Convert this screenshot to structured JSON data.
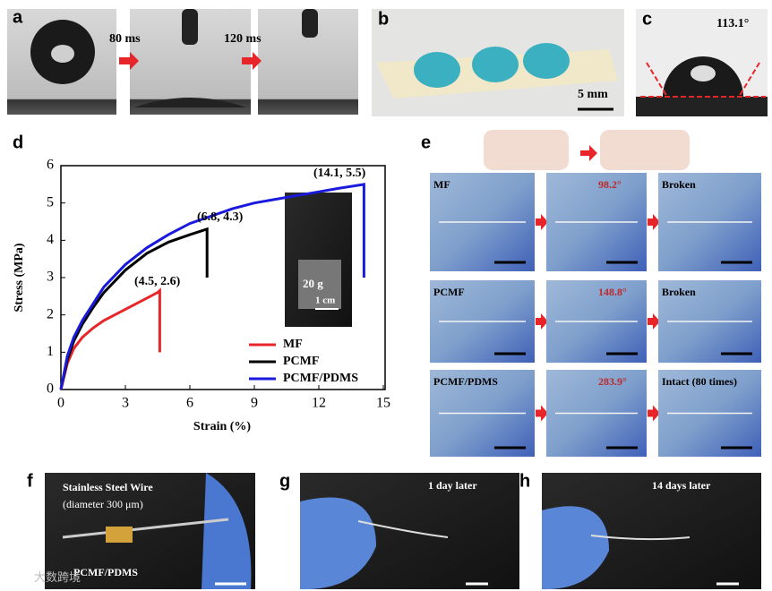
{
  "panels": {
    "a": {
      "label": "a",
      "t1": "80 ms",
      "t2": "120 ms"
    },
    "b": {
      "label": "b",
      "scale": "5 mm"
    },
    "c": {
      "label": "c",
      "angle": "113.1°"
    },
    "e": {
      "label": "e",
      "rows": [
        [
          "MF",
          "98.2°",
          "Broken"
        ],
        [
          "PCMF",
          "148.8°",
          "Broken"
        ],
        [
          "PCMF/PDMS",
          "283.9°",
          "Intact (80 times)"
        ]
      ]
    },
    "f": {
      "label": "f",
      "wire": "Stainless Steel Wire",
      "diameter": "(diameter 300 μm)",
      "coating": "PCMF/PDMS"
    },
    "g": {
      "label": "g",
      "time": "1 day later"
    },
    "h": {
      "label": "h",
      "time": "14 days later"
    },
    "watermark": "大数跨境"
  },
  "chart_data": {
    "type": "line",
    "label": "d",
    "x_label": "Strain (%)",
    "y_label": "Stress (MPa)",
    "xlim": [
      0,
      15
    ],
    "ylim": [
      0,
      6
    ],
    "xticks": [
      0,
      3,
      6,
      9,
      12,
      15
    ],
    "yticks": [
      0,
      1,
      2,
      3,
      4,
      5,
      6
    ],
    "grid": false,
    "legend": "lower right",
    "series": [
      {
        "name": "MF",
        "color": "#e8262a",
        "x": [
          0,
          0.3,
          0.6,
          1,
          1.5,
          2,
          2.5,
          3,
          3.5,
          4,
          4.5,
          4.6,
          4.6
        ],
        "values": [
          0,
          0.7,
          1.1,
          1.4,
          1.65,
          1.85,
          2.0,
          2.15,
          2.3,
          2.45,
          2.6,
          2.65,
          1.0
        ]
      },
      {
        "name": "PCMF",
        "color": "#000000",
        "x": [
          0,
          0.3,
          0.6,
          1,
          1.5,
          2,
          3,
          4,
          5,
          6,
          6.8,
          6.8
        ],
        "values": [
          0,
          0.8,
          1.3,
          1.75,
          2.2,
          2.6,
          3.2,
          3.65,
          3.95,
          4.15,
          4.3,
          3.0
        ]
      },
      {
        "name": "PCMF/PDMS",
        "color": "#1a1adc",
        "x": [
          0,
          0.3,
          0.6,
          1,
          1.5,
          2,
          3,
          4,
          5,
          6,
          7,
          8,
          9,
          10,
          11,
          12,
          13,
          14.1,
          14.1
        ],
        "values": [
          0,
          0.9,
          1.4,
          1.85,
          2.3,
          2.75,
          3.35,
          3.8,
          4.15,
          4.45,
          4.65,
          4.85,
          5.0,
          5.1,
          5.2,
          5.3,
          5.4,
          5.5,
          3.0
        ]
      }
    ],
    "annotations": [
      "(4.5, 2.6)",
      "(6.8, 4.3)",
      "(14.1, 5.5)"
    ],
    "inset": {
      "weight": "20 g",
      "scale": "1 cm"
    }
  }
}
